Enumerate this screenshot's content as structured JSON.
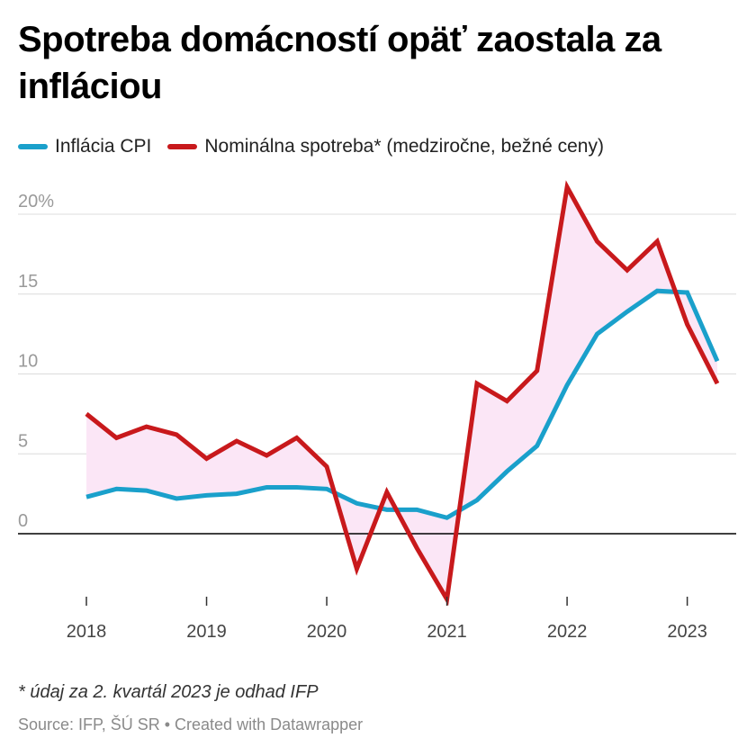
{
  "title": "Spotreba domácností opäť zaostala za infláciou",
  "legend": [
    {
      "label": "Inflácia CPI",
      "color": "#1aa0cb"
    },
    {
      "label": "Nominálna spotreba* (medziročne, bežné ceny)",
      "color": "#c8191c"
    }
  ],
  "note": "* údaj za 2. kvartál 2023 je odhad IFP",
  "source": "Source: IFP, ŠÚ SR • Created with Datawrapper",
  "colors": {
    "inflation": "#1aa0cb",
    "consumption": "#c8191c",
    "fill": "#fbe6f6",
    "grid": "#dcdcdc",
    "zero": "#000000"
  },
  "chart_data": {
    "type": "line",
    "x": [
      "2018-Q1",
      "2018-Q2",
      "2018-Q3",
      "2018-Q4",
      "2019-Q1",
      "2019-Q2",
      "2019-Q3",
      "2019-Q4",
      "2020-Q1",
      "2020-Q2",
      "2020-Q3",
      "2020-Q4",
      "2021-Q1",
      "2021-Q2",
      "2021-Q3",
      "2021-Q4",
      "2022-Q1",
      "2022-Q2",
      "2022-Q3",
      "2022-Q4",
      "2023-Q1",
      "2023-Q2"
    ],
    "x_range": [
      "2018-Q1",
      "2023-Q2"
    ],
    "x_ticks": [
      {
        "label": "2018",
        "at": "2018-Q1"
      },
      {
        "label": "2019",
        "at": "2019-Q1"
      },
      {
        "label": "2020",
        "at": "2020-Q1"
      },
      {
        "label": "2021",
        "at": "2021-Q1"
      },
      {
        "label": "2022",
        "at": "2022-Q1"
      },
      {
        "label": "2023",
        "at": "2023-Q1"
      }
    ],
    "series": [
      {
        "name": "Inflácia CPI",
        "values": [
          2.3,
          2.8,
          2.7,
          2.2,
          2.4,
          2.5,
          2.9,
          2.9,
          2.8,
          1.9,
          1.5,
          1.5,
          1.0,
          2.1,
          3.9,
          5.5,
          9.3,
          12.5,
          13.9,
          15.2,
          15.1,
          10.8
        ]
      },
      {
        "name": "Nominálna spotreba* (medziročne, bežné ceny)",
        "values": [
          7.5,
          6.0,
          6.7,
          6.2,
          4.7,
          5.8,
          4.9,
          6.0,
          4.2,
          -2.2,
          2.6,
          -0.9,
          -4.1,
          9.4,
          8.3,
          10.2,
          21.7,
          18.3,
          16.5,
          18.3,
          13.1,
          9.4
        ]
      }
    ],
    "y_ticks": [
      "20%",
      "15",
      "10",
      "5",
      "0"
    ],
    "y_tick_values": [
      20,
      15,
      10,
      5,
      0
    ],
    "ylim": [
      -4.4,
      22
    ],
    "grid": true,
    "legend_position": "top-left"
  }
}
